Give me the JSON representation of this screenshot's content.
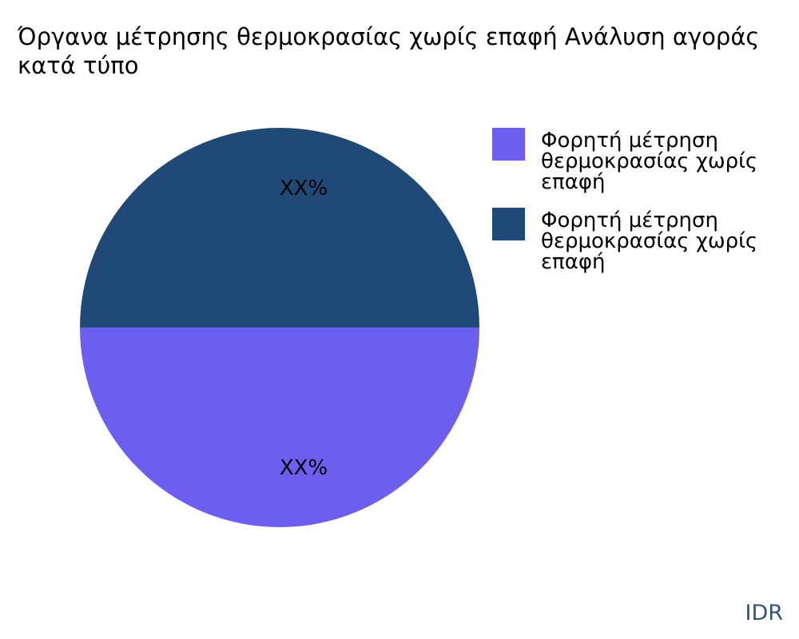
{
  "chart_data": {
    "type": "pie",
    "title": "Όργανα μέτρησης θερμοκρασίας χωρίς επαφή Ανάλυση αγοράς κατά τύπο",
    "slices": [
      {
        "name": "Φορητή μέτρηση θερμοκρασίας χωρίς επαφή",
        "value": 50,
        "label": "XX%",
        "color": "#6c5ff0"
      },
      {
        "name": "Φορητή μέτρηση θερμοκρασίας χωρίς επαφή",
        "value": 50,
        "label": "XX%",
        "color": "#1f4a78"
      }
    ],
    "legend_placement": "right"
  },
  "watermark": "IDR"
}
